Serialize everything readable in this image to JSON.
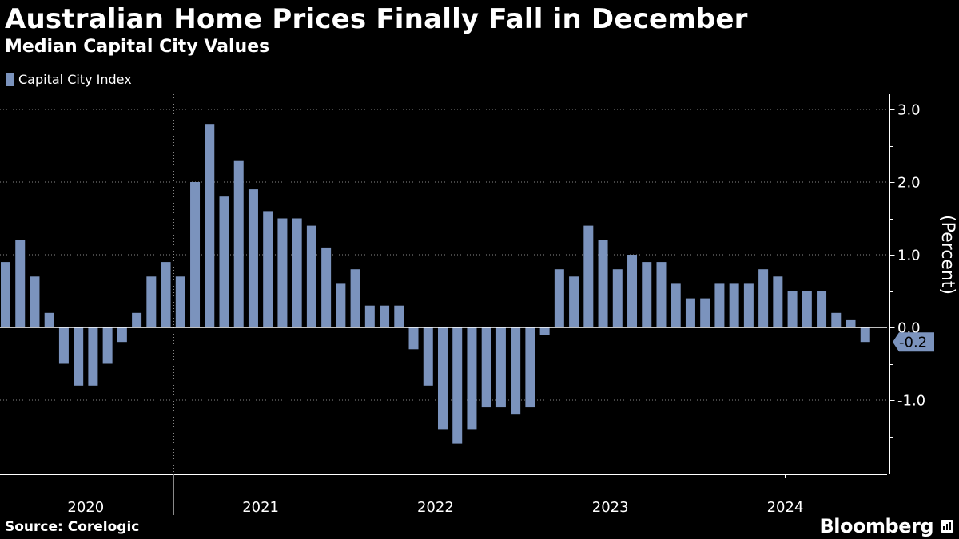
{
  "title": "Australian Home Prices Finally Fall in December",
  "subtitle": "Median Capital City Values",
  "source": "Source: Corelogic",
  "brand": "Bloomberg",
  "colors": {
    "background": "#000000",
    "bar": "#7b93bd",
    "grid": "#8a8a8a",
    "text": "#ffffff"
  },
  "chart_data": {
    "type": "bar",
    "title": "Australian Home Prices Finally Fall in December",
    "subtitle": "Median Capital City Values",
    "ylabel": "(Percent)",
    "xlabel": "",
    "ylim": [
      -2.0,
      3.2
    ],
    "yticks": [
      3.0,
      2.0,
      1.0,
      0.0,
      -1.0
    ],
    "ytick_labels": [
      "3.0",
      "2.0",
      "1.0",
      "0.0",
      "-1.0"
    ],
    "x_year_labels": [
      "2020",
      "2021",
      "2022",
      "2023",
      "2024"
    ],
    "legend": [
      "Capital City Index"
    ],
    "last_value_label": "-0.2",
    "categories": [
      "Jan 2020",
      "Feb 2020",
      "Mar 2020",
      "Apr 2020",
      "May 2020",
      "Jun 2020",
      "Jul 2020",
      "Aug 2020",
      "Sep 2020",
      "Oct 2020",
      "Nov 2020",
      "Dec 2020",
      "Jan 2021",
      "Feb 2021",
      "Mar 2021",
      "Apr 2021",
      "May 2021",
      "Jun 2021",
      "Jul 2021",
      "Aug 2021",
      "Sep 2021",
      "Oct 2021",
      "Nov 2021",
      "Dec 2021",
      "Jan 2022",
      "Feb 2022",
      "Mar 2022",
      "Apr 2022",
      "May 2022",
      "Jun 2022",
      "Jul 2022",
      "Aug 2022",
      "Sep 2022",
      "Oct 2022",
      "Nov 2022",
      "Dec 2022",
      "Jan 2023",
      "Feb 2023",
      "Mar 2023",
      "Apr 2023",
      "May 2023",
      "Jun 2023",
      "Jul 2023",
      "Aug 2023",
      "Sep 2023",
      "Oct 2023",
      "Nov 2023",
      "Dec 2023",
      "Jan 2024",
      "Feb 2024",
      "Mar 2024",
      "Apr 2024",
      "May 2024",
      "Jun 2024",
      "Jul 2024",
      "Aug 2024",
      "Sep 2024",
      "Oct 2024",
      "Nov 2024",
      "Dec 2024"
    ],
    "series": [
      {
        "name": "Capital City Index",
        "values": [
          0.9,
          1.2,
          0.7,
          0.2,
          -0.5,
          -0.8,
          -0.8,
          -0.5,
          -0.2,
          0.2,
          0.7,
          0.9,
          0.7,
          2.0,
          2.8,
          1.8,
          2.3,
          1.9,
          1.6,
          1.5,
          1.5,
          1.4,
          1.1,
          0.6,
          0.8,
          0.3,
          0.3,
          0.3,
          -0.3,
          -0.8,
          -1.4,
          -1.6,
          -1.4,
          -1.1,
          -1.1,
          -1.2,
          -1.1,
          -0.1,
          0.8,
          0.7,
          1.4,
          1.2,
          0.8,
          1.0,
          0.9,
          0.9,
          0.6,
          0.4,
          0.4,
          0.6,
          0.6,
          0.6,
          0.8,
          0.7,
          0.5,
          0.5,
          0.5,
          0.2,
          0.1,
          -0.2
        ]
      }
    ]
  }
}
